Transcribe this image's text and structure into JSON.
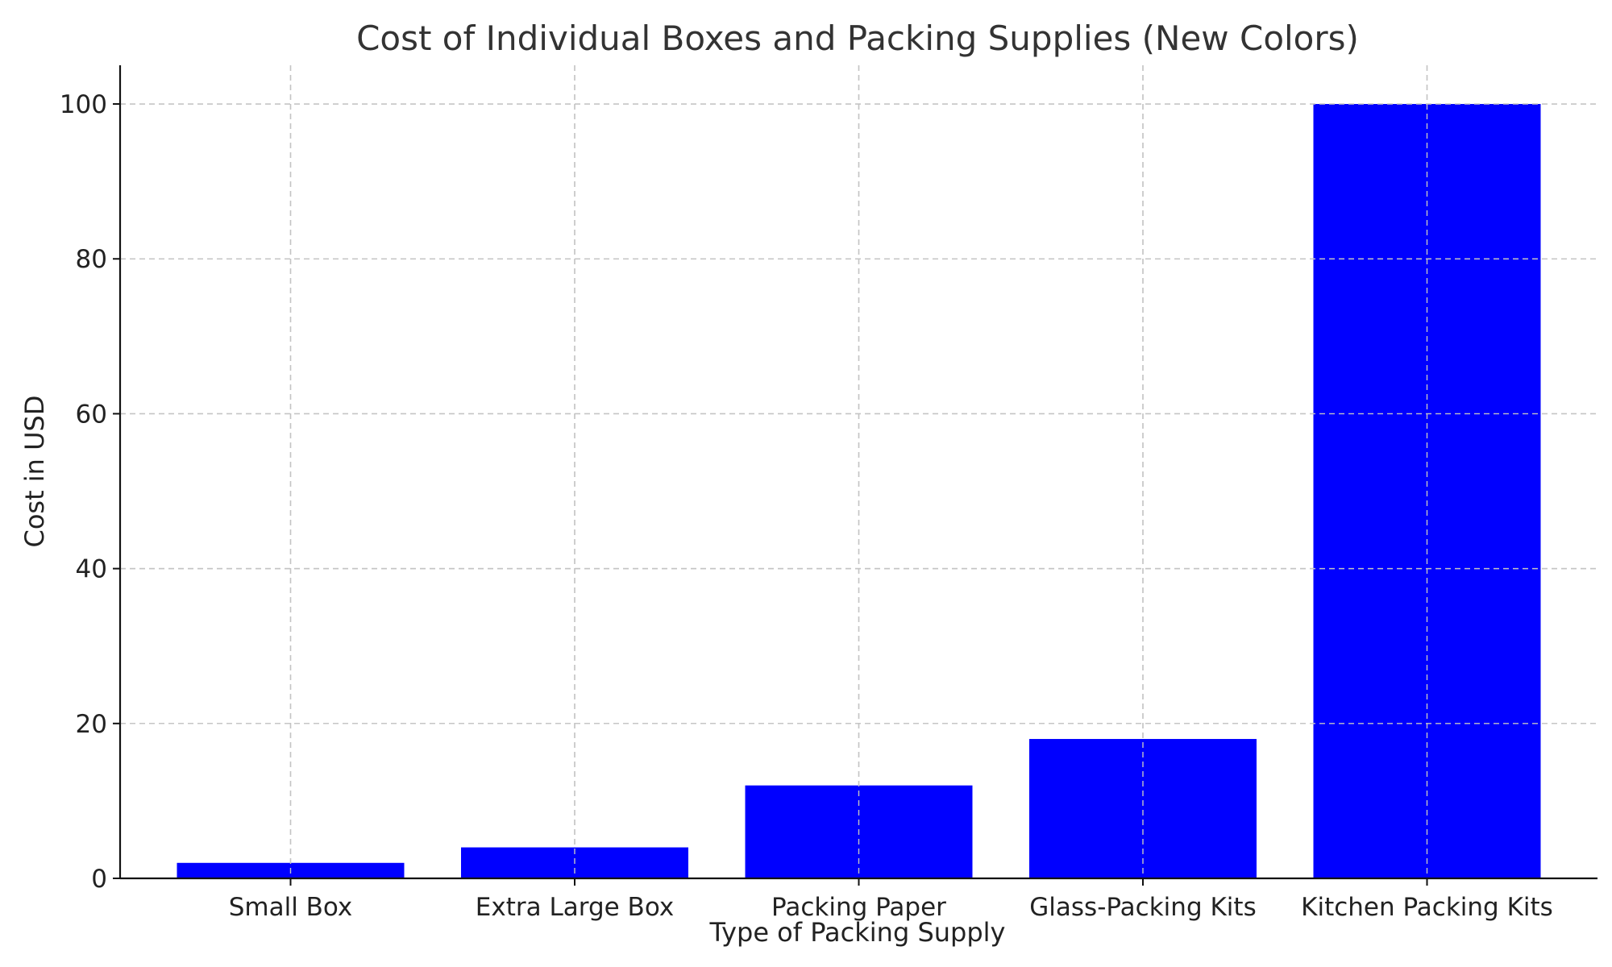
{
  "chart_data": {
    "type": "bar",
    "title": "Cost of Individual Boxes and Packing Supplies (New Colors)",
    "xlabel": "Type of Packing Supply",
    "ylabel": "Cost in USD",
    "categories": [
      "Small Box",
      "Extra Large Box",
      "Packing Paper",
      "Glass-Packing Kits",
      "Kitchen Packing Kits"
    ],
    "values": [
      2,
      4,
      12,
      18,
      100
    ],
    "ylim": [
      0,
      105
    ],
    "yticks": [
      0,
      20,
      40,
      60,
      80,
      100
    ],
    "grid": true,
    "bar_color": "#0000ff"
  }
}
